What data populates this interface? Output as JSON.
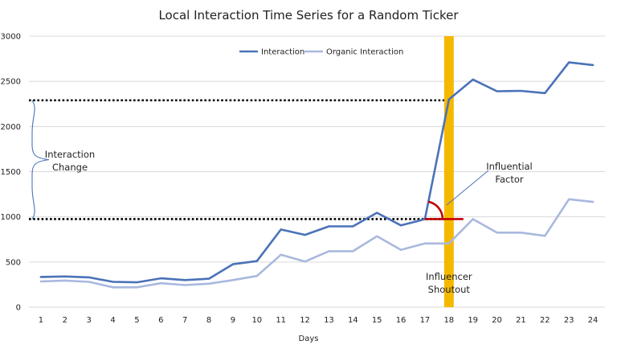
{
  "chart_data": {
    "type": "line",
    "title": "Local Interaction Time Series for a Random Ticker",
    "xlabel": "Days",
    "ylabel": "",
    "x": [
      1,
      2,
      3,
      4,
      5,
      6,
      7,
      8,
      9,
      10,
      11,
      12,
      13,
      14,
      15,
      16,
      17,
      18,
      19,
      20,
      21,
      22,
      23,
      24
    ],
    "ylim": [
      0,
      3000
    ],
    "yticks": [
      0,
      500,
      1000,
      1500,
      2000,
      2500,
      3000
    ],
    "grid": "horizontal",
    "legend": "top-center",
    "series": [
      {
        "name": "Interaction",
        "color": "#4a72b8",
        "values": [
          335,
          340,
          330,
          280,
          275,
          320,
          300,
          315,
          475,
          510,
          860,
          800,
          895,
          895,
          1045,
          905,
          975,
          2300,
          2520,
          2390,
          2395,
          2370,
          2710,
          2680
        ]
      },
      {
        "name": "Organic Interaction",
        "color": "#a9b8de",
        "values": [
          285,
          295,
          280,
          220,
          220,
          265,
          245,
          260,
          300,
          345,
          580,
          505,
          620,
          620,
          785,
          635,
          705,
          705,
          975,
          825,
          825,
          790,
          1195,
          1165
        ]
      }
    ],
    "reference_lines": {
      "upper_value": 2290,
      "lower_value": 975,
      "color": "#000000"
    },
    "highlight_band": {
      "x": 18,
      "color": "#f5b800"
    },
    "annotations": {
      "interaction_change": [
        "Interaction",
        "Change"
      ],
      "influential_factor": [
        "Influential",
        "Factor"
      ],
      "influencer_shoutout": [
        "Influencer",
        "Shoutout"
      ],
      "angle_color": "#c00000"
    }
  }
}
